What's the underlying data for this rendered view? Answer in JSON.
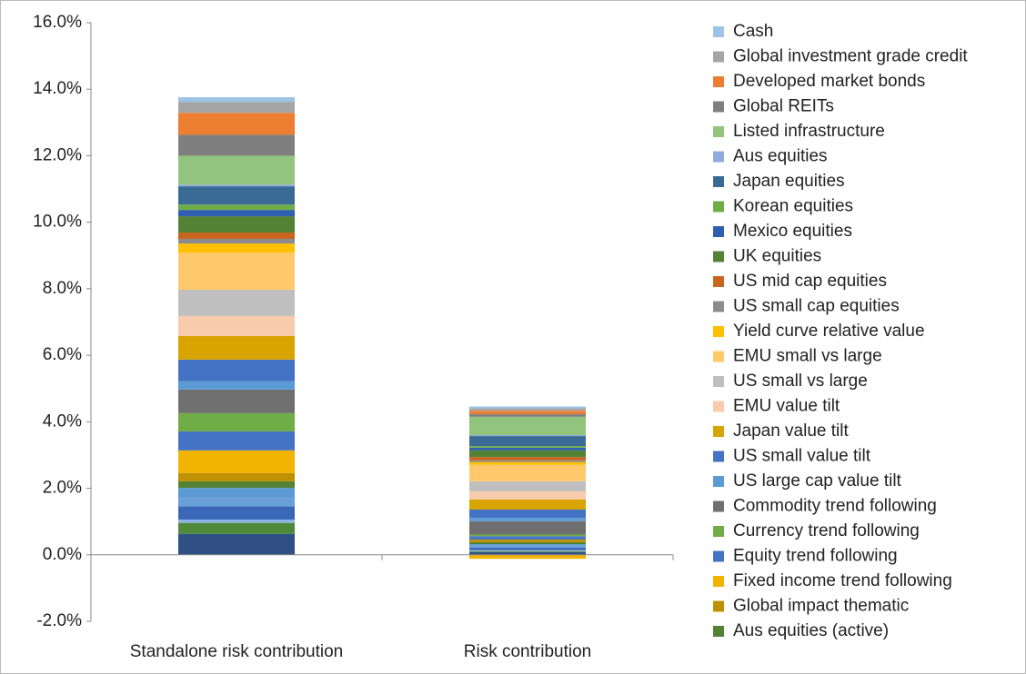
{
  "chart_data": {
    "type": "stacked-bar",
    "categories": [
      "Standalone risk contribution",
      "Risk contribution"
    ],
    "ylim": [
      -2,
      16
    ],
    "yticks": [
      {
        "value": -2,
        "label": "-2.0%"
      },
      {
        "value": 0,
        "label": "0.0%"
      },
      {
        "value": 2,
        "label": "2.0%"
      },
      {
        "value": 4,
        "label": "4.0%"
      },
      {
        "value": 6,
        "label": "6.0%"
      },
      {
        "value": 8,
        "label": "8.0%"
      },
      {
        "value": 10,
        "label": "10.0%"
      },
      {
        "value": 12,
        "label": "12.0%"
      },
      {
        "value": 14,
        "label": "14.0%"
      },
      {
        "value": 16,
        "label": "16.0%"
      }
    ],
    "grid": false,
    "legend": "right",
    "series": [
      {
        "name": null,
        "color": "#2f4f85",
        "values": [
          0.63,
          0.08
        ]
      },
      {
        "name": null,
        "color": "#4e8a3a",
        "values": [
          0.33,
          0.03
        ]
      },
      {
        "name": null,
        "color": "#8fb4e3",
        "values": [
          0.1,
          0.03
        ]
      },
      {
        "name": null,
        "color": "#3a67b8",
        "values": [
          0.4,
          0.08
        ]
      },
      {
        "name": null,
        "color": "#6aa0d8",
        "values": [
          0.25,
          0.05
        ]
      },
      {
        "name": null,
        "color": "#5b9bd5",
        "values": [
          0.3,
          0.05
        ]
      },
      {
        "name": "Aus equities (active)",
        "color": "#548235",
        "values": [
          0.2,
          0.06
        ]
      },
      {
        "name": "Global impact thematic",
        "color": "#bf9000",
        "values": [
          0.25,
          0.08
        ]
      },
      {
        "name": "Fixed income trend following",
        "color": "#f2b400",
        "values": [
          0.68,
          -0.12
        ]
      },
      {
        "name": "Equity trend following",
        "color": "#4472c4",
        "values": [
          0.57,
          0.1
        ]
      },
      {
        "name": "Currency trend following",
        "color": "#70ad47",
        "values": [
          0.55,
          0.05
        ]
      },
      {
        "name": "Commodity trend following",
        "color": "#6f6f6f",
        "values": [
          0.71,
          0.4
        ]
      },
      {
        "name": "US large cap value tilt",
        "color": "#5b9bd5",
        "values": [
          0.25,
          0.1
        ]
      },
      {
        "name": "US small value tilt",
        "color": "#4472c4",
        "values": [
          0.65,
          0.25
        ]
      },
      {
        "name": "Japan value tilt",
        "color": "#d9a400",
        "values": [
          0.71,
          0.3
        ]
      },
      {
        "name": "EMU value tilt",
        "color": "#f8cbad",
        "values": [
          0.6,
          0.25
        ]
      },
      {
        "name": "US small vs large",
        "color": "#bfbfbf",
        "values": [
          0.79,
          0.3
        ]
      },
      {
        "name": "EMU small vs large",
        "color": "#ffc96b",
        "values": [
          1.12,
          0.5
        ]
      },
      {
        "name": "Yield curve relative value",
        "color": "#ffc000",
        "values": [
          0.27,
          0.08
        ]
      },
      {
        "name": "US small cap equities",
        "color": "#8c8c8c",
        "values": [
          0.14,
          0.05
        ]
      },
      {
        "name": "US mid cap equities",
        "color": "#c9651f",
        "values": [
          0.19,
          0.1
        ]
      },
      {
        "name": "UK equities",
        "color": "#548235",
        "values": [
          0.49,
          0.2
        ]
      },
      {
        "name": "Mexico equities",
        "color": "#2f5fb0",
        "values": [
          0.19,
          0.08
        ]
      },
      {
        "name": "Korean equities",
        "color": "#70ad47",
        "values": [
          0.16,
          0.05
        ]
      },
      {
        "name": "Japan equities",
        "color": "#3a6b94",
        "values": [
          0.55,
          0.3
        ]
      },
      {
        "name": "Aus equities",
        "color": "#8faadc",
        "values": [
          0.05,
          0.03
        ]
      },
      {
        "name": "Listed infrastructure",
        "color": "#93c47d",
        "values": [
          0.87,
          0.55
        ]
      },
      {
        "name": "Global REITs",
        "color": "#7f7f7f",
        "values": [
          0.63,
          0.08
        ]
      },
      {
        "name": "Developed market bonds",
        "color": "#ed7d31",
        "values": [
          0.66,
          0.1
        ]
      },
      {
        "name": "Global investment grade credit",
        "color": "#a5a5a5",
        "values": [
          0.33,
          0.08
        ]
      },
      {
        "name": "Cash",
        "color": "#9dc3e6",
        "values": [
          0.14,
          0.05
        ]
      }
    ]
  }
}
